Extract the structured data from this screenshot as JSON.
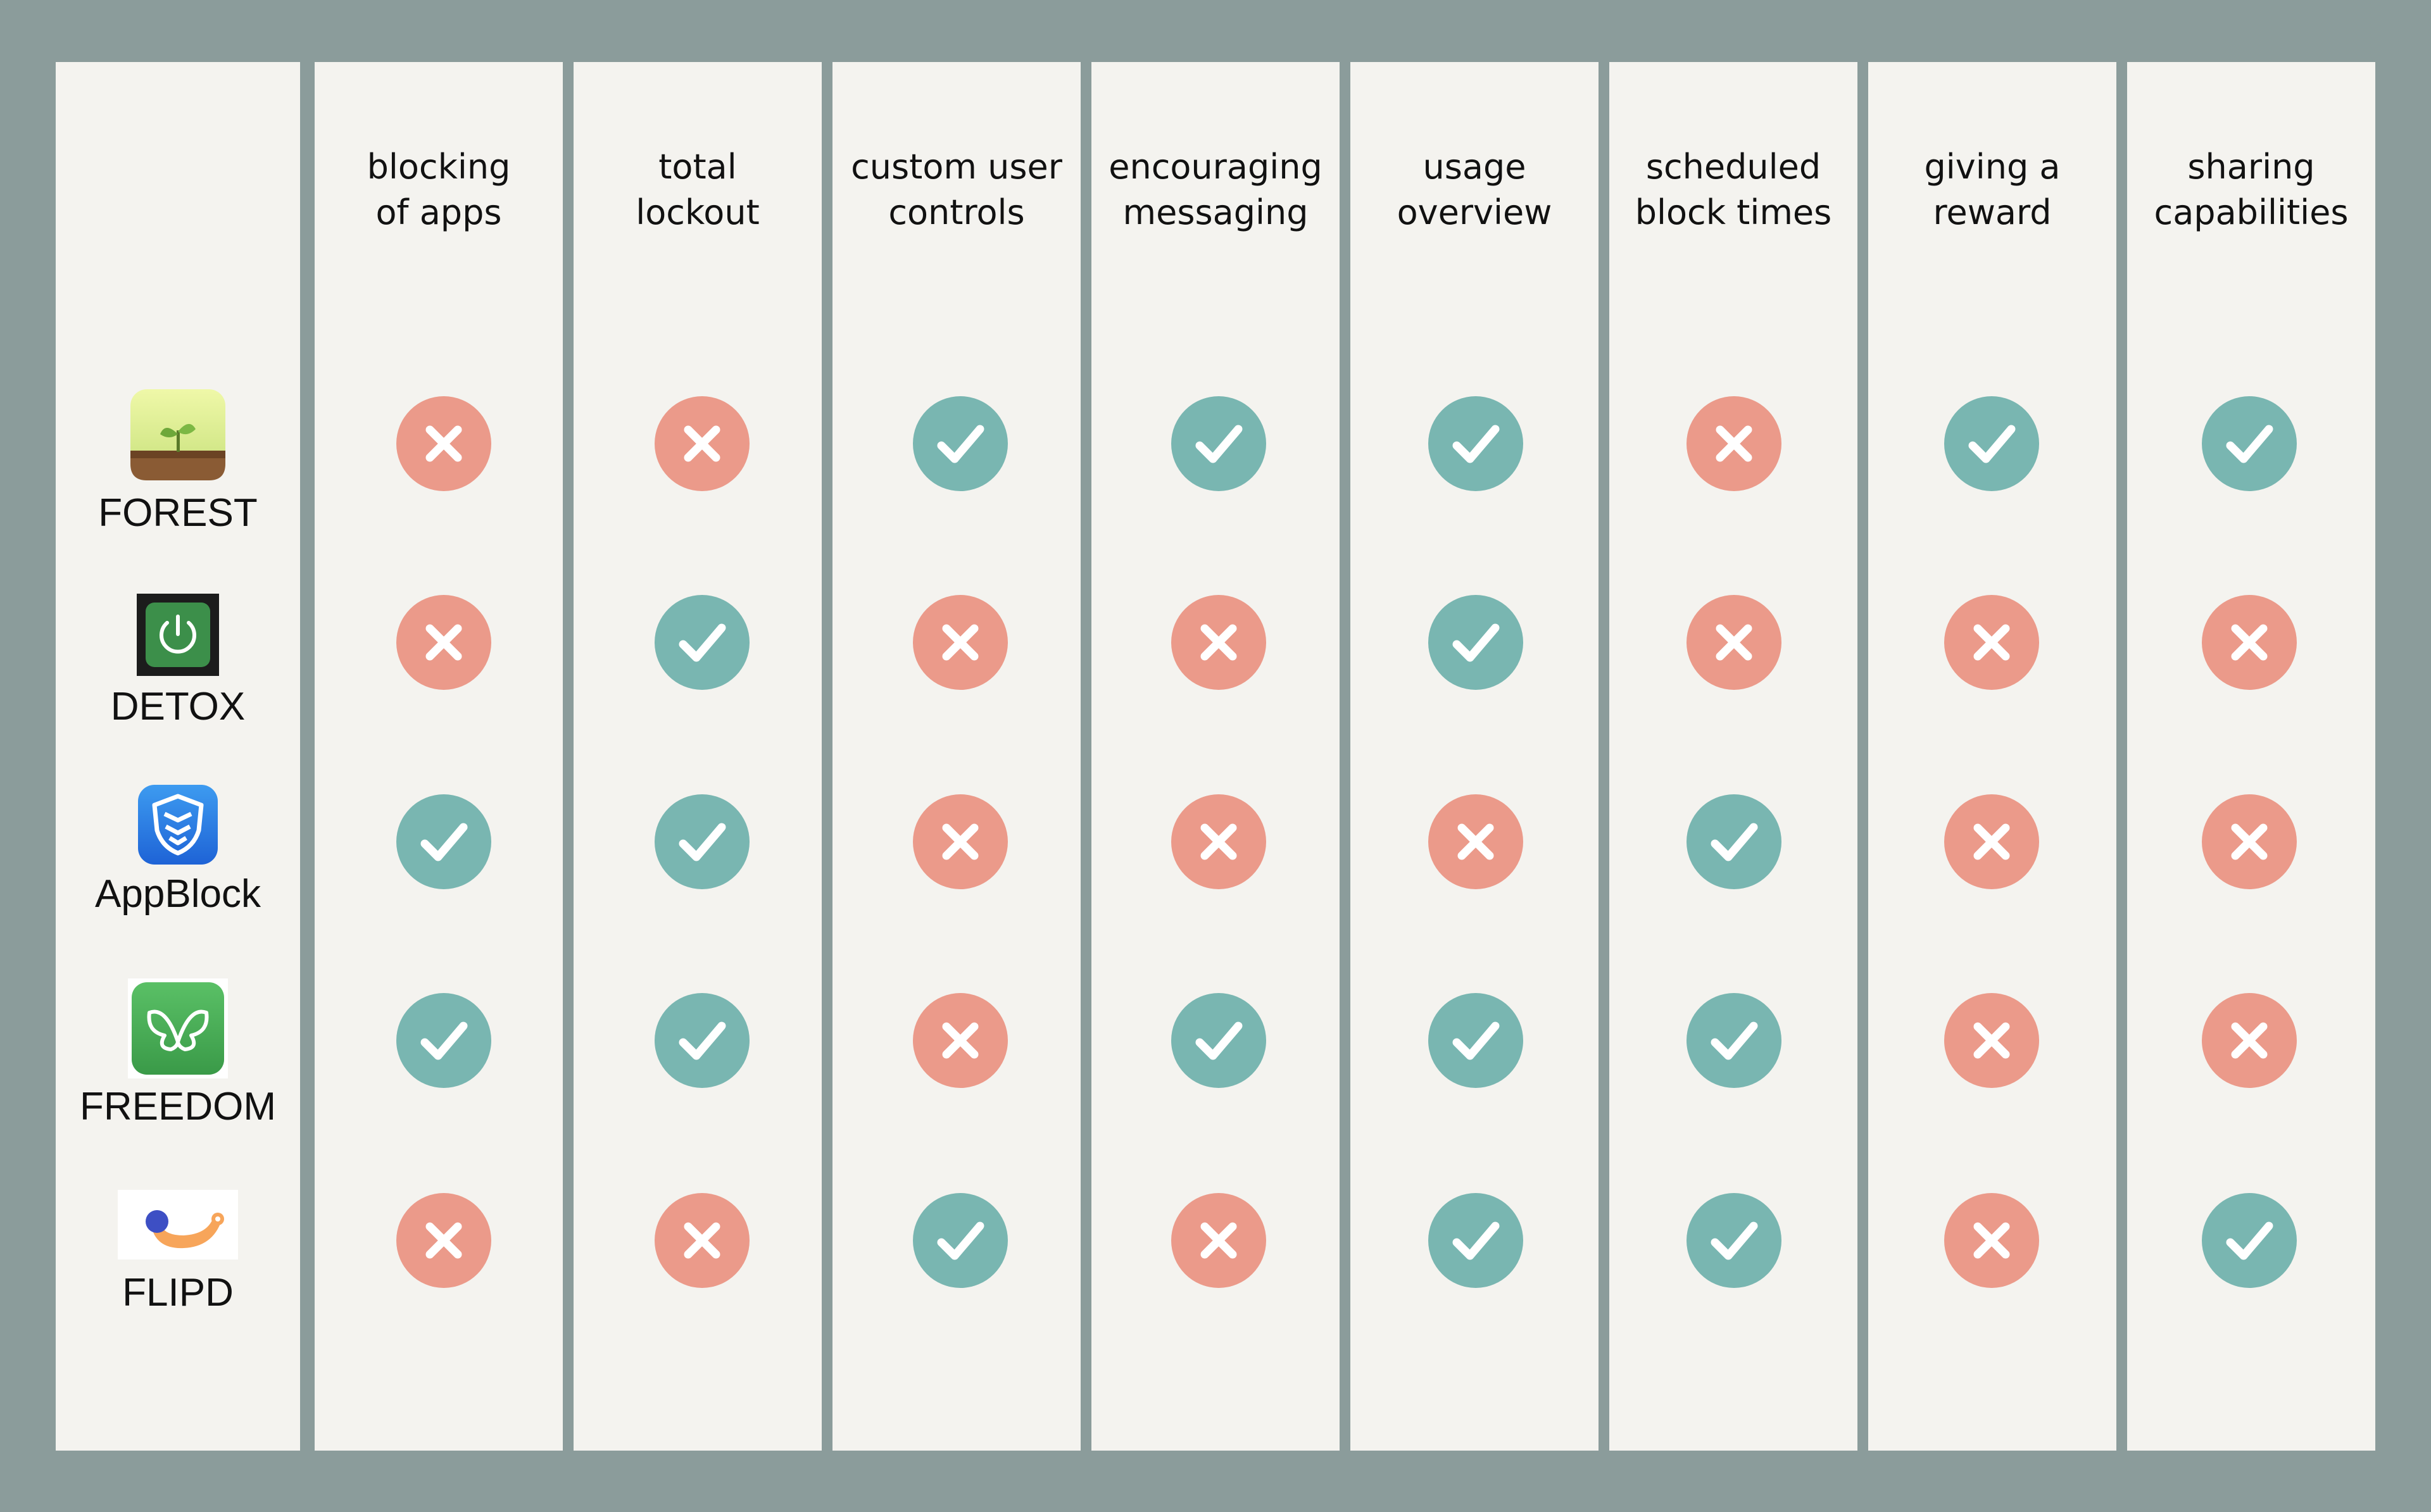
{
  "colors": {
    "background": "#8b9c9b",
    "panel": "#f4f3ef",
    "yes": "#79b6b1",
    "no": "#eb9a8a"
  },
  "features": [
    "blocking\nof apps",
    "total\nlockout",
    "custom user\ncontrols",
    "encouraging\nmessaging",
    "usage\noverview",
    "scheduled\nblock times",
    "giving a\nreward",
    "sharing\ncapabilities"
  ],
  "apps": [
    {
      "name": "FOREST",
      "icon": "forest-sprout-icon",
      "values": [
        false,
        false,
        true,
        true,
        true,
        false,
        true,
        true
      ]
    },
    {
      "name": "DETOX",
      "icon": "power-button-icon",
      "values": [
        false,
        true,
        false,
        false,
        true,
        false,
        false,
        false
      ]
    },
    {
      "name": "AppBlock",
      "icon": "appblock-shield-icon",
      "values": [
        true,
        true,
        false,
        false,
        false,
        true,
        false,
        false
      ]
    },
    {
      "name": "FREEDOM",
      "icon": "butterfly-icon",
      "values": [
        true,
        true,
        false,
        true,
        true,
        true,
        false,
        false
      ]
    },
    {
      "name": "FLIPD",
      "icon": "flipd-smile-icon",
      "values": [
        false,
        false,
        true,
        false,
        true,
        true,
        false,
        true
      ]
    }
  ]
}
